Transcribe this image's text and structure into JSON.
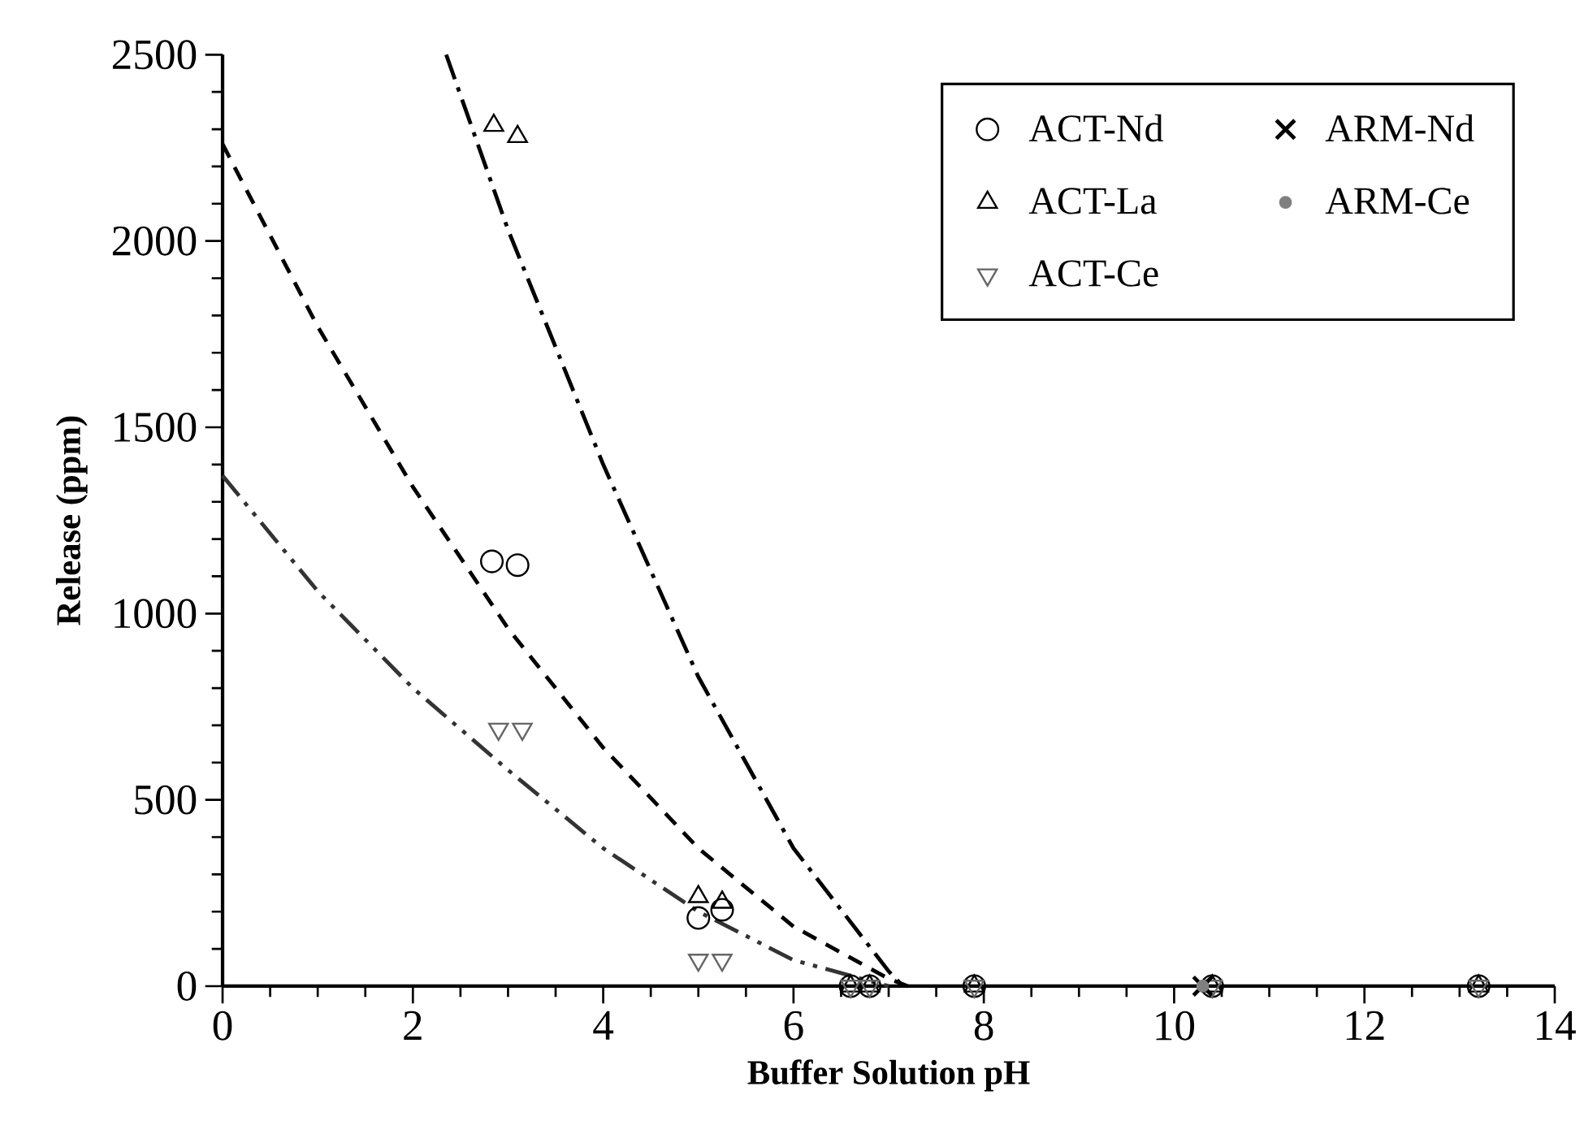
{
  "chart_data": {
    "type": "scatter",
    "xlabel": "Buffer Solution pH",
    "ylabel": "Release (ppm)",
    "xlim": [
      0,
      14
    ],
    "ylim": [
      0,
      2500
    ],
    "xticks": [
      0,
      2,
      4,
      6,
      8,
      10,
      12,
      14
    ],
    "yticks": [
      0,
      500,
      1000,
      1500,
      2000,
      2500
    ],
    "legend": "top right",
    "grid": false,
    "series": [
      {
        "name": "ACT-Nd",
        "color": "#000000",
        "marker": "circle",
        "x": [
          2.83,
          3.1,
          5.0,
          5.25,
          6.6,
          6.8,
          7.9,
          10.4,
          13.2
        ],
        "values": [
          1140,
          1130,
          183,
          205,
          0,
          0,
          0,
          0,
          0
        ]
      },
      {
        "name": "ACT-La",
        "color": "#000000",
        "marker": "triangle",
        "x": [
          2.85,
          3.1,
          5.0,
          5.25,
          6.6,
          6.8,
          7.9,
          10.4,
          13.2
        ],
        "values": [
          2310,
          2280,
          240,
          225,
          0,
          0,
          0,
          0,
          0
        ]
      },
      {
        "name": "ACT-Ce",
        "color": "#666666",
        "marker": "triangle_down",
        "x": [
          2.9,
          3.15,
          5.0,
          5.25,
          6.6,
          6.8,
          7.9,
          10.4,
          13.2
        ],
        "values": [
          690,
          690,
          70,
          70,
          0,
          0,
          0,
          0,
          0
        ]
      },
      {
        "name": "ARM-Nd",
        "color": "#000000",
        "marker": "cross",
        "x": [
          10.3
        ],
        "values": [
          0
        ]
      },
      {
        "name": "ARM-Ce",
        "color": "#808080",
        "marker": "dot",
        "x": [
          10.3
        ],
        "values": [
          0
        ]
      },
      {
        "type": "line",
        "color": "#000000",
        "marker": "none",
        "line_style": "dashed",
        "x": [
          0,
          1,
          2,
          3,
          4,
          5,
          6,
          7,
          7.2
        ],
        "values": [
          2260,
          1770,
          1340,
          960,
          640,
          370,
          160,
          20,
          0
        ]
      },
      {
        "type": "line",
        "color": "#000000",
        "marker": "none",
        "line_style": "dashdotted",
        "x": [
          2.35,
          3,
          4,
          5,
          6,
          7,
          7.15
        ],
        "values": [
          2500,
          2030,
          1400,
          830,
          370,
          40,
          0
        ]
      },
      {
        "type": "line",
        "color": "#333333",
        "marker": "none",
        "line_style": "dashdotdotted",
        "x": [
          0,
          1,
          2,
          3,
          4,
          5,
          6,
          7
        ],
        "values": [
          1370,
          1060,
          800,
          580,
          370,
          200,
          70,
          0
        ]
      }
    ]
  }
}
